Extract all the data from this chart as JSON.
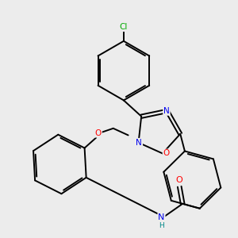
{
  "bg_color": "#ececec",
  "bond_color": "#000000",
  "bond_width": 1.4,
  "figsize": [
    3.0,
    3.0
  ],
  "dpi": 100,
  "atoms": {
    "Cl": "#00aa00",
    "O": "#ff0000",
    "N": "#0000ee",
    "H": "#008888",
    "C": "#000000"
  }
}
